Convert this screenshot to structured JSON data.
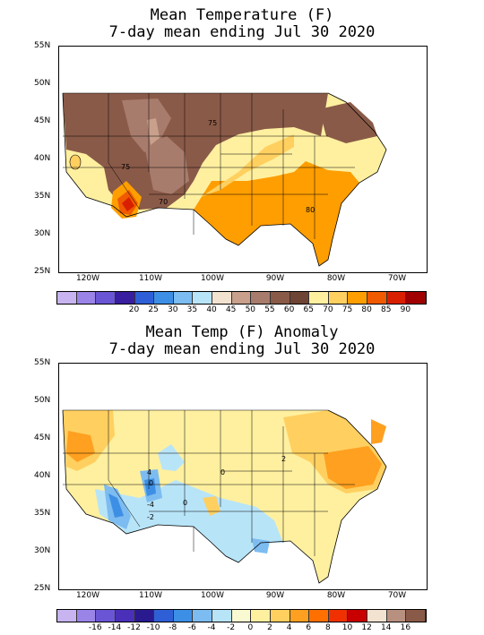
{
  "map1": {
    "title_line1": "Mean Temperature (F)",
    "title_line2": "7-day mean ending Jul 30 2020",
    "lat_labels": [
      "55N",
      "50N",
      "45N",
      "40N",
      "35N",
      "30N",
      "25N"
    ],
    "lon_labels": [
      "120W",
      "110W",
      "100W",
      "90W",
      "80W",
      "70W"
    ],
    "contour_labels": [
      "75",
      "75",
      "70",
      "80"
    ],
    "legend_colors": [
      "#c8b4f0",
      "#9a84e8",
      "#6a55d4",
      "#3a1ea0",
      "#2f5fd6",
      "#3d8fe6",
      "#7cbcf0",
      "#b8e4f8",
      "#f2e2d0",
      "#c8a08c",
      "#a87c6c",
      "#8a5a48",
      "#6e4434",
      "#fff0a0",
      "#ffd060",
      "#ff9e00",
      "#f05a00",
      "#d82000",
      "#a00000"
    ],
    "legend_labels": [
      "20",
      "25",
      "30",
      "35",
      "40",
      "45",
      "50",
      "55",
      "60",
      "65",
      "70",
      "75",
      "80",
      "85",
      "90"
    ]
  },
  "map2": {
    "title_line1": "Mean Temp (F) Anomaly",
    "title_line2": "7-day mean ending Jul 30 2020",
    "lat_labels": [
      "55N",
      "50N",
      "45N",
      "40N",
      "35N",
      "30N",
      "25N"
    ],
    "lon_labels": [
      "120W",
      "110W",
      "100W",
      "90W",
      "80W",
      "70W"
    ],
    "contour_labels": [
      "2",
      "0",
      "-4",
      "-2",
      "0",
      "0",
      "4"
    ],
    "legend_colors": [
      "#c8b4f0",
      "#9a84e8",
      "#6a55d4",
      "#4a30b8",
      "#2a1a90",
      "#2f5fd6",
      "#3d8fe6",
      "#7cbcf0",
      "#b8e4f8",
      "#fafad2",
      "#fff0a0",
      "#ffd060",
      "#ffa020",
      "#ff7000",
      "#f03000",
      "#c80000",
      "#f2e2d0",
      "#b89080",
      "#8a5a48"
    ],
    "legend_labels": [
      "-16",
      "-14",
      "-12",
      "-10",
      "-8",
      "-6",
      "-4",
      "-2",
      "0",
      "2",
      "4",
      "6",
      "8",
      "10",
      "12",
      "14",
      "16"
    ]
  }
}
